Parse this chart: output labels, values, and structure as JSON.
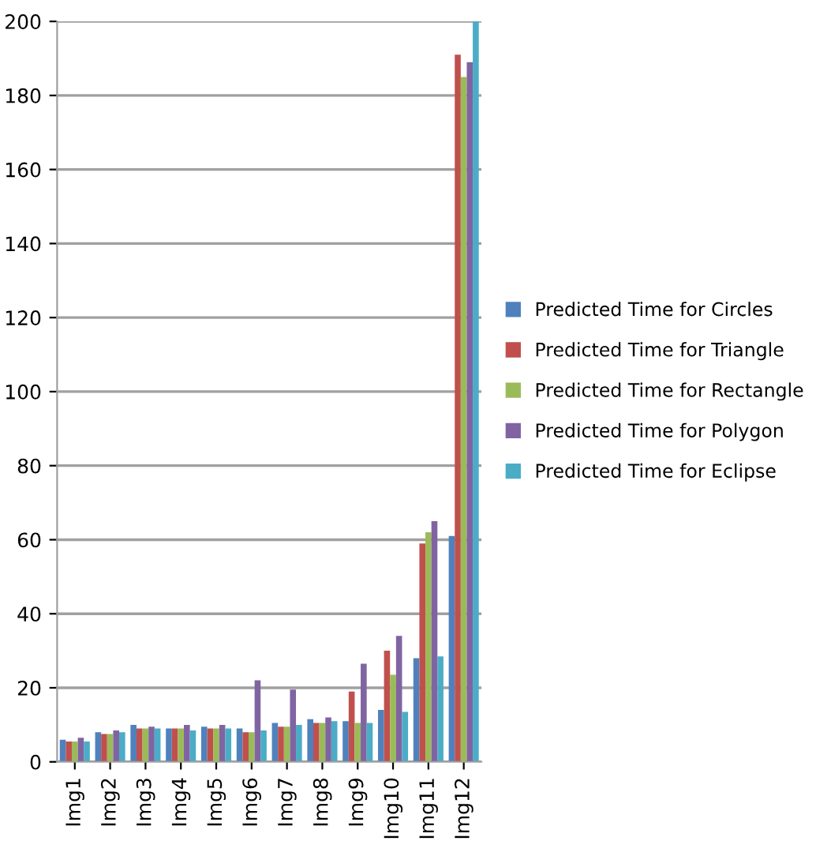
{
  "chart_data": {
    "type": "bar",
    "categories": [
      "Img1",
      "Img2",
      "Img3",
      "Img4",
      "Img5",
      "Img6",
      "Img7",
      "Img8",
      "Img9",
      "Img10",
      "Img11",
      "Img12"
    ],
    "series": [
      {
        "name": "Predicted Time for Circles",
        "color": "#4f81bd",
        "values": [
          6,
          8,
          10,
          9,
          9.5,
          9,
          10.5,
          11.5,
          11,
          14,
          28,
          61
        ]
      },
      {
        "name": "Predicted Time for Triangle",
        "color": "#c0504d",
        "values": [
          5.5,
          7.5,
          9,
          9,
          9,
          8,
          9.5,
          10.5,
          19,
          30,
          59,
          191
        ]
      },
      {
        "name": "Predicted Time for Rectangle",
        "color": "#9bbb59",
        "values": [
          5.5,
          7.5,
          9,
          9,
          9,
          8,
          9.5,
          10.5,
          10.5,
          23.5,
          62,
          185
        ]
      },
      {
        "name": "Predicted Time for Polygon",
        "color": "#8064a2",
        "values": [
          6.5,
          8.5,
          9.5,
          10,
          10,
          22,
          19.5,
          12,
          26.5,
          34,
          65,
          189
        ]
      },
      {
        "name": "Predicted Time for Eclipse",
        "color": "#4bacc6",
        "values": [
          5.5,
          8,
          9,
          8.5,
          9,
          8.5,
          10,
          11,
          10.5,
          13.5,
          28.5,
          200
        ]
      }
    ],
    "ylim": [
      0,
      200
    ],
    "yticks": [
      0,
      20,
      40,
      60,
      80,
      100,
      120,
      140,
      160,
      180,
      200
    ],
    "grid": "y",
    "legend": "right"
  }
}
